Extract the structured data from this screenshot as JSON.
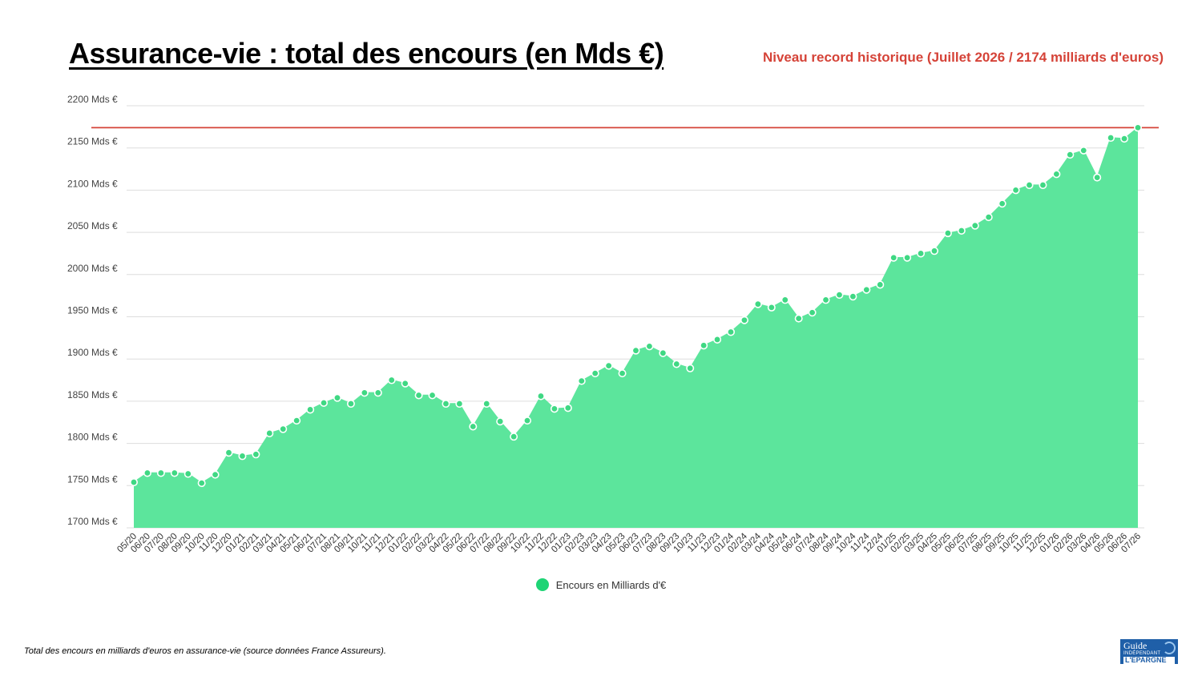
{
  "title": "Assurance-vie : total des encours (en Mds €)",
  "record_label": "Niveau record historique (Juillet 2026 / 2174 milliards d'euros)",
  "footnote": "Total des encours en milliards d'euros en assurance-vie (source données France Assureurs).",
  "logo": {
    "line1": "Guide",
    "line2": "INDÉPENDANT",
    "line3": "L'ÉPARGNE"
  },
  "colors": {
    "area": "#5ce59c",
    "point": "#3fd883",
    "record_line": "#d54338",
    "grid": "#dddddd",
    "legend_dot": "#1ed475"
  },
  "chart_data": {
    "type": "area",
    "y_unit_suffix": " Mds €",
    "ylim": [
      1700,
      2200
    ],
    "yticks": [
      1700,
      1750,
      1800,
      1850,
      1900,
      1950,
      2000,
      2050,
      2100,
      2150,
      2200
    ],
    "grid": true,
    "legend_position": "bottom-center",
    "series": [
      {
        "name": "Encours en Milliards d'€",
        "x": [
          "05/20",
          "06/20",
          "07/20",
          "08/20",
          "09/20",
          "10/20",
          "11/20",
          "12/20",
          "01/21",
          "02/21",
          "03/21",
          "04/21",
          "05/21",
          "06/21",
          "07/21",
          "08/21",
          "09/21",
          "10/21",
          "11/21",
          "12/21",
          "01/22",
          "02/22",
          "03/22",
          "04/22",
          "05/22",
          "06/22",
          "07/22",
          "08/22",
          "09/22",
          "10/22",
          "11/22",
          "12/22",
          "01/23",
          "02/23",
          "03/23",
          "04/23",
          "05/23",
          "06/23",
          "07/23",
          "08/23",
          "09/23",
          "10/23",
          "11/23",
          "12/23",
          "01/24",
          "02/24",
          "03/24",
          "04/24",
          "05/24",
          "06/24",
          "07/24",
          "08/24",
          "09/24",
          "10/24",
          "11/24",
          "12/24",
          "01/25",
          "02/25",
          "03/25",
          "04/25",
          "05/25",
          "06/25",
          "07/25",
          "08/25",
          "09/25",
          "10/25",
          "11/25",
          "12/25",
          "01/26",
          "02/26",
          "03/26",
          "04/26",
          "05/26",
          "06/26",
          "07/26"
        ],
        "values": [
          1754,
          1765,
          1765,
          1765,
          1764,
          1753,
          1763,
          1789,
          1785,
          1787,
          1812,
          1817,
          1827,
          1840,
          1848,
          1854,
          1847,
          1860,
          1860,
          1875,
          1871,
          1857,
          1857,
          1847,
          1847,
          1820,
          1847,
          1826,
          1808,
          1827,
          1856,
          1841,
          1842,
          1874,
          1883,
          1892,
          1883,
          1910,
          1915,
          1907,
          1894,
          1889,
          1916,
          1923,
          1932,
          1946,
          1965,
          1961,
          1970,
          1948,
          1955,
          1970,
          1976,
          1974,
          1982,
          1988,
          2020,
          2020,
          2025,
          2028,
          2049,
          2052,
          2058,
          2068,
          2084,
          2100,
          2106,
          2106,
          2119,
          2142,
          2147,
          2115,
          2162,
          2161,
          2174
        ]
      }
    ],
    "reference_line": {
      "value": 2174
    }
  }
}
